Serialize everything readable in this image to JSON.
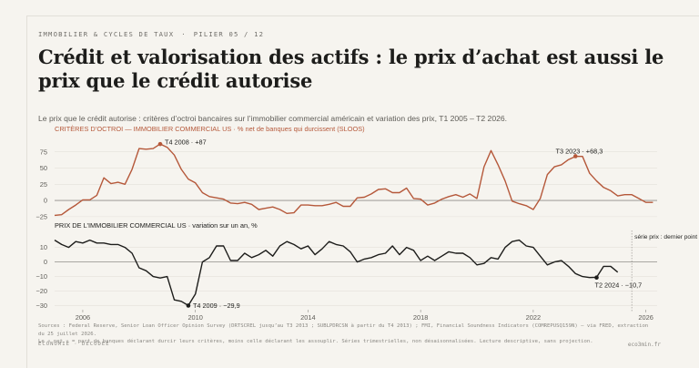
{
  "header": {
    "kicker_left": "IMMOBILIER & CYCLES DE TAUX",
    "kicker_sep": "·",
    "kicker_right": "PILIER 05 / 12",
    "title": "Crédit et valorisation des actifs : le prix d’achat est aussi le prix que le crédit autorise",
    "subtitle": "Le prix que le crédit autorise : critères d’octroi bancaires sur l’immobilier commercial américain et variation des prix, T1 2005 – T2 2026."
  },
  "chart_data": [
    {
      "type": "line",
      "title": "CRITÈRES D’OCTROI — IMMOBILIER COMMERCIAL US · % net de banques qui durcissent (SLOOS)",
      "color": "#b5583a",
      "yticks": [
        75,
        50,
        25,
        0,
        -25
      ],
      "ylim": [
        -28,
        90
      ],
      "xlim": [
        2005.0,
        2026.4
      ],
      "series": [
        {
          "x": [
            2005.0,
            2005.25,
            2005.5,
            2005.75,
            2006.0,
            2006.25,
            2006.5,
            2006.75,
            2007.0,
            2007.25,
            2007.5,
            2007.75,
            2008.0,
            2008.25,
            2008.5,
            2008.75,
            2009.0,
            2009.25,
            2009.5,
            2009.75,
            2010.0,
            2010.25,
            2010.5,
            2010.75,
            2011.0,
            2011.25,
            2011.5,
            2011.75,
            2012.0,
            2012.25,
            2012.5,
            2012.75,
            2013.0,
            2013.25,
            2013.5,
            2013.75,
            2014.0,
            2014.25,
            2014.5,
            2014.75,
            2015.0,
            2015.25,
            2015.5,
            2015.75,
            2016.0,
            2016.25,
            2016.5,
            2016.75,
            2017.0,
            2017.25,
            2017.5,
            2017.75,
            2018.0,
            2018.25,
            2018.5,
            2018.75,
            2019.0,
            2019.25,
            2019.5,
            2019.75,
            2020.0,
            2020.25,
            2020.5,
            2020.75,
            2021.0,
            2021.25,
            2021.5,
            2021.75,
            2022.0,
            2022.25,
            2022.5,
            2022.75,
            2023.0,
            2023.25,
            2023.5,
            2023.75,
            2024.0,
            2024.25,
            2024.5,
            2024.75,
            2025.0,
            2025.25,
            2025.5,
            2025.75,
            2026.0,
            2026.25
          ],
          "values": [
            -23,
            -22,
            -14,
            -7,
            1,
            1,
            8,
            35,
            26,
            28,
            25,
            48,
            80,
            79,
            80,
            87,
            82,
            70,
            48,
            33,
            27,
            12,
            6,
            4,
            2,
            -4,
            -5,
            -3,
            -6,
            -14,
            -12,
            -10,
            -14,
            -20,
            -19,
            -7,
            -7,
            -8,
            -8,
            -6,
            -3,
            -9,
            -9,
            4,
            5,
            10,
            17,
            18,
            12,
            12,
            19,
            3,
            2,
            -7,
            -4,
            2,
            6,
            9,
            5,
            10,
            3,
            52,
            77,
            55,
            30,
            -1,
            -5,
            -8,
            -14,
            3,
            40,
            52,
            55,
            63,
            68,
            68,
            42,
            30,
            20,
            15,
            7,
            9,
            9,
            3,
            -3,
            -3
          ]
        }
      ],
      "annotations": [
        {
          "label": "T4 2008 · +87",
          "x": 2008.75,
          "y": 87
        },
        {
          "label": "T3 2023 · +68,3",
          "x": 2023.5,
          "y": 68.3
        }
      ]
    },
    {
      "type": "line",
      "title": "PRIX DE L’IMMOBILIER COMMERCIAL US · variation sur un an, %",
      "color": "#1d1d1b",
      "yticks": [
        10,
        0,
        -10,
        -20,
        -30
      ],
      "ylim": [
        -31.5,
        16
      ],
      "xlim": [
        2005.0,
        2026.4
      ],
      "xticks": [
        2006,
        2010,
        2014,
        2018,
        2022,
        2026
      ],
      "series": [
        {
          "x": [
            2005.0,
            2005.25,
            2005.5,
            2005.75,
            2006.0,
            2006.25,
            2006.5,
            2006.75,
            2007.0,
            2007.25,
            2007.5,
            2007.75,
            2008.0,
            2008.25,
            2008.5,
            2008.75,
            2009.0,
            2009.25,
            2009.5,
            2009.75,
            2010.0,
            2010.25,
            2010.5,
            2010.75,
            2011.0,
            2011.25,
            2011.5,
            2011.75,
            2012.0,
            2012.25,
            2012.5,
            2012.75,
            2013.0,
            2013.25,
            2013.5,
            2013.75,
            2014.0,
            2014.25,
            2014.5,
            2014.75,
            2015.0,
            2015.25,
            2015.5,
            2015.75,
            2016.0,
            2016.25,
            2016.5,
            2016.75,
            2017.0,
            2017.25,
            2017.5,
            2017.75,
            2018.0,
            2018.25,
            2018.5,
            2018.75,
            2019.0,
            2019.25,
            2019.5,
            2019.75,
            2020.0,
            2020.25,
            2020.5,
            2020.75,
            2021.0,
            2021.25,
            2021.5,
            2021.75,
            2022.0,
            2022.25,
            2022.5,
            2022.75,
            2023.0,
            2023.25,
            2023.5,
            2023.75,
            2024.0,
            2024.25,
            2024.5,
            2024.75,
            2025.0,
            2025.25
          ],
          "values": [
            15,
            12,
            10,
            14,
            13,
            15,
            13,
            13,
            12,
            12,
            10,
            6,
            -4,
            -6,
            -10,
            -11,
            -10,
            -26,
            -27,
            -29.9,
            -22,
            0,
            3,
            11,
            11,
            1,
            1,
            6,
            3,
            5,
            8,
            4,
            11,
            14,
            12,
            9,
            11,
            5,
            9,
            14,
            12,
            11,
            7,
            0,
            2,
            3,
            5,
            6,
            11,
            5,
            10,
            8,
            1,
            4,
            1,
            4,
            7,
            6,
            6,
            3,
            -2,
            -1,
            3,
            2,
            10,
            14,
            15,
            11,
            10,
            4,
            -2,
            0,
            1,
            -3,
            -8,
            -10,
            -10.7,
            -10.5,
            -3,
            -3,
            -7,
            null
          ]
        }
      ],
      "annotations": [
        {
          "label": "T4 2009 · −29,9",
          "x": 2009.75,
          "y": -29.9
        },
        {
          "label": "T2 2024 · −10,7",
          "x": 2024.25,
          "y": -10.7
        },
        {
          "label": "série prix : dernier point",
          "x": 2025.5,
          "y": 16
        }
      ]
    }
  ],
  "footer": {
    "sources": "Sources : Federal Reserve, Senior Loan Officer Opinion Survey (DRTSCREL jusqu’au T3 2013 ; SUBLPDRCSN à partir du T4 2013) ; FMI, Financial Soundness Indicators (COMREPUSQ159N) — via FRED, extraction du 25 juillet 2026.",
    "note": "Le « net » = part de banques déclarant durcir leurs critères, moins celle déclarant les assouplir. Séries trimestrielles, non désaisonnalisées. Lecture descriptive, sans projection.",
    "brand": "ÉCONOMIE · DÉCODÉE",
    "site": "eco3min.fr"
  }
}
